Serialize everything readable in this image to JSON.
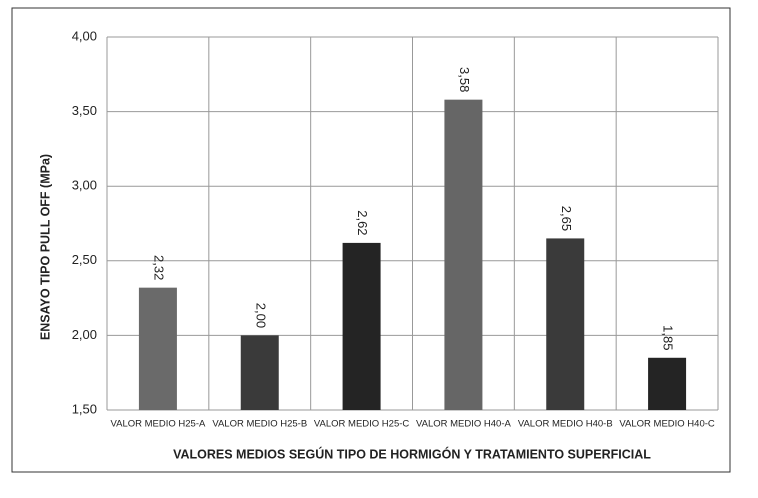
{
  "chart_data": {
    "type": "bar",
    "categories": [
      "VALOR MEDIO H25-A",
      "VALOR MEDIO H25-B",
      "VALOR MEDIO H25-C",
      "VALOR MEDIO H40-A",
      "VALOR MEDIO H40-B",
      "VALOR MEDIO H40-C"
    ],
    "values": [
      2.32,
      2.0,
      2.62,
      3.58,
      2.65,
      1.85
    ],
    "value_labels": [
      "2,32",
      "2,00",
      "2,62",
      "3,58",
      "2,65",
      "1,85"
    ],
    "colors": [
      "#6a6a6a",
      "#3a3a3a",
      "#242424",
      "#666666",
      "#3a3a3a",
      "#242424"
    ],
    "x_label": "VALORES MEDIOS SEGÚN TIPO DE HORMIGÓN Y TRATAMIENTO SUPERFICIAL",
    "y_label": "ENSAYO TIPO PULL OFF (MPa)",
    "ylim": [
      1.5,
      4.0
    ],
    "yticks": [
      {
        "value": 1.5,
        "label": "1,50"
      },
      {
        "value": 2.0,
        "label": "2,00"
      },
      {
        "value": 2.5,
        "label": "2,50"
      },
      {
        "value": 3.0,
        "label": "3,00"
      },
      {
        "value": 3.5,
        "label": "3,50"
      },
      {
        "value": 4.0,
        "label": "4,00"
      }
    ],
    "grid": true
  }
}
